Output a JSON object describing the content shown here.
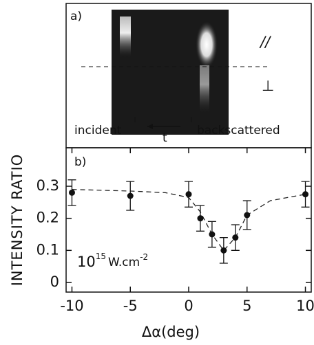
{
  "panel_a": {
    "label": "a)",
    "parallel": "//",
    "perpendicular": "⊥",
    "incident": "incident",
    "time": "t",
    "backscattered": "backscattered"
  },
  "chart_data": {
    "type": "scatter",
    "label": "b)",
    "y_label": "INTENSITY RATIO",
    "x_label": "Δα(deg)",
    "annotation": {
      "base": "10",
      "exponent": "15",
      "unit": "W.cm",
      "unit_exponent": "-2"
    },
    "series": [
      {
        "color": "#111111",
        "x": [
          -10,
          -5,
          0,
          1,
          2,
          3,
          4,
          5,
          10
        ],
        "values": [
          0.28,
          0.27,
          0.275,
          0.2,
          0.15,
          0.1,
          0.14,
          0.21,
          0.275
        ],
        "errors": [
          0.04,
          0.045,
          0.04,
          0.04,
          0.04,
          0.04,
          0.04,
          0.045,
          0.04
        ]
      }
    ],
    "curve": {
      "x": [
        -10,
        -5,
        -2,
        0,
        1,
        2,
        3,
        4,
        5,
        7,
        10
      ],
      "values": [
        0.29,
        0.285,
        0.28,
        0.265,
        0.22,
        0.15,
        0.1,
        0.14,
        0.21,
        0.255,
        0.275
      ]
    },
    "xlim": [
      -10.5,
      10.5
    ],
    "ylim": [
      -0.03,
      0.42
    ],
    "xticks": [
      -10,
      -5,
      0,
      5,
      10
    ],
    "yticks": [
      0,
      0.1,
      0.2,
      0.3
    ]
  }
}
